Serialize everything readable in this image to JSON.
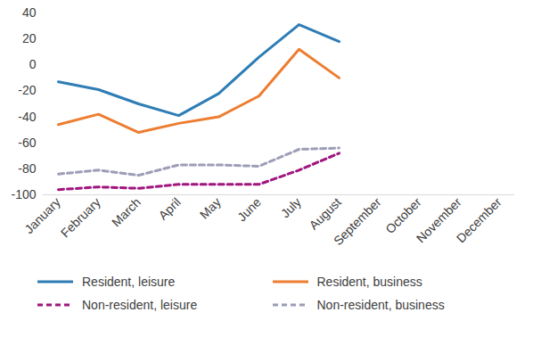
{
  "chart_data": {
    "type": "line",
    "categories": [
      "January",
      "February",
      "March",
      "April",
      "May",
      "June",
      "July",
      "August",
      "September",
      "October",
      "November",
      "December"
    ],
    "series": [
      {
        "name": "Resident, leisure",
        "color": "#2e7db5",
        "line_style": "solid",
        "values": [
          -13,
          -19,
          -30,
          -39,
          -22,
          6,
          31,
          18,
          null,
          null,
          null,
          null
        ]
      },
      {
        "name": "Resident, business",
        "color": "#ed7d31",
        "line_style": "solid",
        "values": [
          -46,
          -38,
          -52,
          -45,
          -40,
          -24,
          12,
          -10,
          null,
          null,
          null,
          null
        ]
      },
      {
        "name": "Non-resident, leisure",
        "color": "#a0157e",
        "line_style": "dashed",
        "values": [
          -96,
          -94,
          -95,
          -92,
          -92,
          -92,
          -81,
          -68,
          null,
          null,
          null,
          null
        ]
      },
      {
        "name": "Non-resident, business",
        "color": "#9d9db8",
        "line_style": "dashed",
        "values": [
          -84,
          -81,
          -85,
          -77,
          -77,
          -78,
          -65,
          -64,
          null,
          null,
          null,
          null
        ]
      }
    ],
    "ylim": [
      -100,
      40
    ],
    "yticks": [
      -100,
      -80,
      -60,
      -40,
      -20,
      0,
      20,
      40
    ],
    "grid": false,
    "legend": "bottom"
  }
}
